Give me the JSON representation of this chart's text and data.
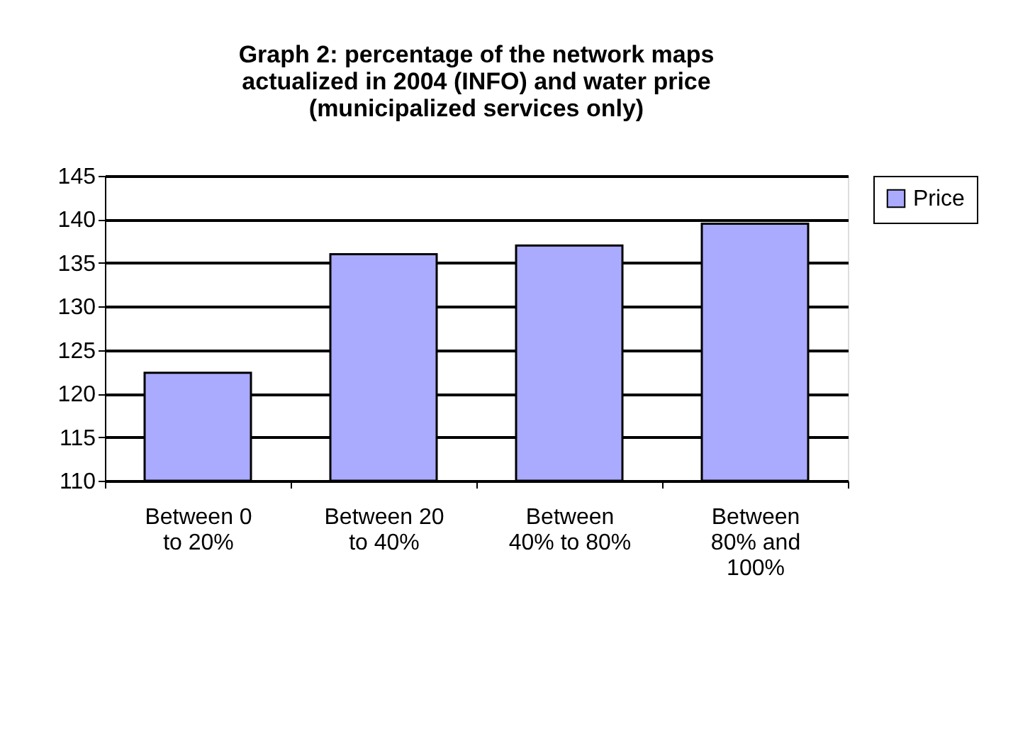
{
  "chart_data": {
    "type": "bar",
    "title": "Graph 2: percentage of the network maps actualized in 2004 (INFO) and water price (municipalized services only)",
    "categories": [
      "Between 0 to 20%",
      "Between 20 to 40%",
      "Between 40% to 80%",
      "Between 80% and 100%"
    ],
    "series": [
      {
        "name": "Price",
        "color": "#aaaaff",
        "values": [
          122.4,
          136.0,
          137.0,
          139.5
        ]
      }
    ],
    "ylim": [
      110,
      145
    ],
    "yticks": [
      110,
      115,
      120,
      125,
      130,
      135,
      140,
      145
    ],
    "grid": "y",
    "legend": "right"
  }
}
